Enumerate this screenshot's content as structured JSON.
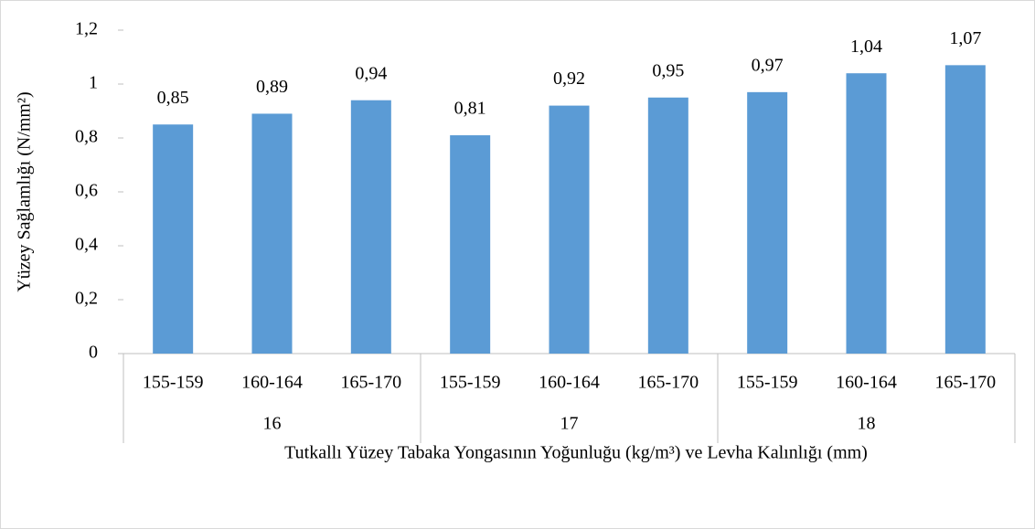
{
  "chart_data": {
    "type": "bar",
    "y_label": "Yüzey Sağlamlığı (N/mm²)",
    "x_label": "Tutkallı Yüzey Tabaka Yongasının Yoğunluğu (kg/m³) ve Levha Kalınlığı (mm)",
    "categories": [
      "155-159",
      "160-164",
      "165-170",
      "155-159",
      "160-164",
      "165-170",
      "155-159",
      "160-164",
      "165-170"
    ],
    "groups": [
      "16",
      "17",
      "18"
    ],
    "values": [
      0.85,
      0.89,
      0.94,
      0.81,
      0.92,
      0.95,
      0.97,
      1.04,
      1.07
    ],
    "value_labels": [
      "0,85",
      "0,89",
      "0,94",
      "0,81",
      "0,92",
      "0,95",
      "0,97",
      "1,04",
      "1,07"
    ],
    "color": "#5b9bd5",
    "ylim": [
      0,
      1.2
    ],
    "yticks": [
      0,
      {
        "value": 0.2,
        "label": "0,2"
      },
      {
        "value": 0.4,
        "label": "0,4"
      },
      {
        "value": 0.6,
        "label": "0,6"
      },
      {
        "value": 0.8,
        "label": "0,8"
      },
      1,
      {
        "value": 1.2,
        "label": "1,2"
      }
    ],
    "grid": false
  }
}
